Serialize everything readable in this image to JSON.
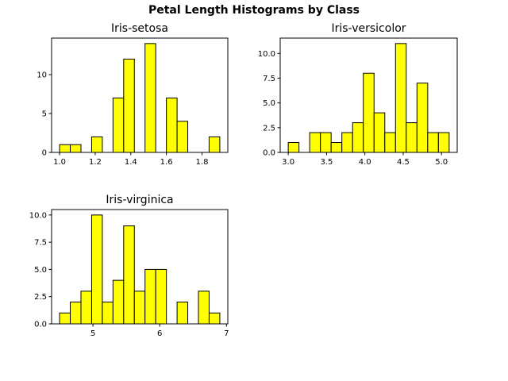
{
  "title": "Petal Length Histograms by Class",
  "chart_data": [
    {
      "type": "histogram",
      "title": "Iris-setosa",
      "color": "#ffff00",
      "edgecolor": "#000000",
      "bins": [
        1.0,
        1.06,
        1.12,
        1.18,
        1.24,
        1.3,
        1.36,
        1.42,
        1.48,
        1.54,
        1.6,
        1.66,
        1.72,
        1.78,
        1.84,
        1.9
      ],
      "values": [
        1,
        1,
        0,
        2,
        0,
        7,
        12,
        0,
        14,
        0,
        7,
        4,
        0,
        0,
        2
      ],
      "xlim": [
        0.955,
        1.945
      ],
      "ylim": [
        0,
        14.7
      ],
      "xticks": [
        {
          "value": 1.0,
          "label": "1.0"
        },
        {
          "value": 1.2,
          "label": "1.2"
        },
        {
          "value": 1.4,
          "label": "1.4"
        },
        {
          "value": 1.6,
          "label": "1.6"
        },
        {
          "value": 1.8,
          "label": "1.8"
        }
      ],
      "yticks": [
        0,
        5,
        10
      ]
    },
    {
      "type": "histogram",
      "title": "Iris-versicolor",
      "color": "#ffff00",
      "edgecolor": "#000000",
      "bins": [
        3.0,
        3.14,
        3.28,
        3.42,
        3.56,
        3.7,
        3.84,
        3.98,
        4.12,
        4.26,
        4.4,
        4.54,
        4.68,
        4.82,
        4.96,
        5.1
      ],
      "values": [
        1,
        0,
        2,
        2,
        1,
        2,
        3,
        8,
        4,
        2,
        11,
        3,
        7,
        2,
        2
      ],
      "xlim": [
        2.895,
        5.205
      ],
      "ylim": [
        0,
        11.55
      ],
      "xticks": [
        {
          "value": 3.0,
          "label": "3.0"
        },
        {
          "value": 3.5,
          "label": "3.5"
        },
        {
          "value": 4.0,
          "label": "4.0"
        },
        {
          "value": 4.5,
          "label": "4.5"
        },
        {
          "value": 5.0,
          "label": "5.0"
        }
      ],
      "yticks": [
        {
          "value": 0,
          "label": "0.0"
        },
        {
          "value": 2.5,
          "label": "2.5"
        },
        {
          "value": 5,
          "label": "5.0"
        },
        {
          "value": 7.5,
          "label": "7.5"
        },
        {
          "value": 10,
          "label": "10.0"
        }
      ]
    },
    {
      "type": "histogram",
      "title": "Iris-virginica",
      "color": "#ffff00",
      "edgecolor": "#000000",
      "bins": [
        4.5,
        4.66,
        4.82,
        4.98,
        5.14,
        5.3,
        5.46,
        5.62,
        5.78,
        5.94,
        6.1,
        6.26,
        6.42,
        6.58,
        6.74,
        6.9
      ],
      "values": [
        1,
        2,
        3,
        10,
        2,
        4,
        9,
        3,
        5,
        5,
        0,
        2,
        0,
        3,
        1
      ],
      "xlim": [
        4.38,
        7.02
      ],
      "ylim": [
        0,
        10.5
      ],
      "xticks": [
        5,
        6,
        7
      ],
      "yticks": [
        {
          "value": 0,
          "label": "0.0"
        },
        {
          "value": 2.5,
          "label": "2.5"
        },
        {
          "value": 5,
          "label": "5.0"
        },
        {
          "value": 7.5,
          "label": "7.5"
        },
        {
          "value": 10,
          "label": "10.0"
        }
      ]
    }
  ]
}
